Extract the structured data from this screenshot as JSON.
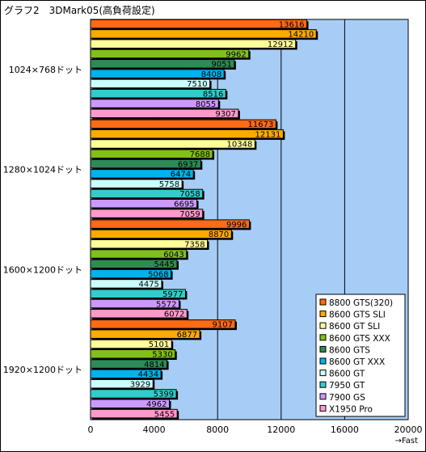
{
  "chart_data": {
    "type": "bar",
    "orientation": "horizontal",
    "title": "グラフ2　3DMark05(高負荷設定)",
    "xlabel": "→Fast",
    "xlim": [
      0,
      20000
    ],
    "xticks": [
      0,
      4000,
      8000,
      12000,
      16000,
      20000
    ],
    "grid": true,
    "legend_position": "bottom-right",
    "plot_background": "#a6cdf5",
    "categories": [
      "1024×768ドット",
      "1280×1024ドット",
      "1600×1200ドット",
      "1920×1200ドット"
    ],
    "series": [
      {
        "name": "8800 GTS(320)",
        "color": "#ff6a14",
        "values": [
          13616,
          11673,
          9996,
          9107
        ]
      },
      {
        "name": "8600 GTS SLI",
        "color": "#ffaa00",
        "values": [
          14210,
          12131,
          8870,
          6877
        ]
      },
      {
        "name": "8600 GT SLI",
        "color": "#ffff99",
        "values": [
          12912,
          10348,
          7358,
          5101
        ]
      },
      {
        "name": "8600 GTS XXX",
        "color": "#80c018",
        "values": [
          9962,
          7688,
          6043,
          5330
        ]
      },
      {
        "name": "8600 GTS",
        "color": "#2e8b57",
        "values": [
          9051,
          6937,
          5445,
          4814
        ]
      },
      {
        "name": "8600 GT XXX",
        "color": "#00b2ee",
        "values": [
          8408,
          6474,
          5068,
          4434
        ]
      },
      {
        "name": "8600 GT",
        "color": "#ccffff",
        "values": [
          7510,
          5758,
          4475,
          3929
        ]
      },
      {
        "name": "7950 GT",
        "color": "#33cccc",
        "values": [
          8516,
          7058,
          5977,
          5399
        ]
      },
      {
        "name": "7900 GS",
        "color": "#cc99ff",
        "values": [
          8055,
          6695,
          5572,
          4962
        ]
      },
      {
        "name": "X1950 Pro",
        "color": "#ff99cc",
        "values": [
          9307,
          7059,
          6072,
          5455
        ]
      }
    ]
  }
}
